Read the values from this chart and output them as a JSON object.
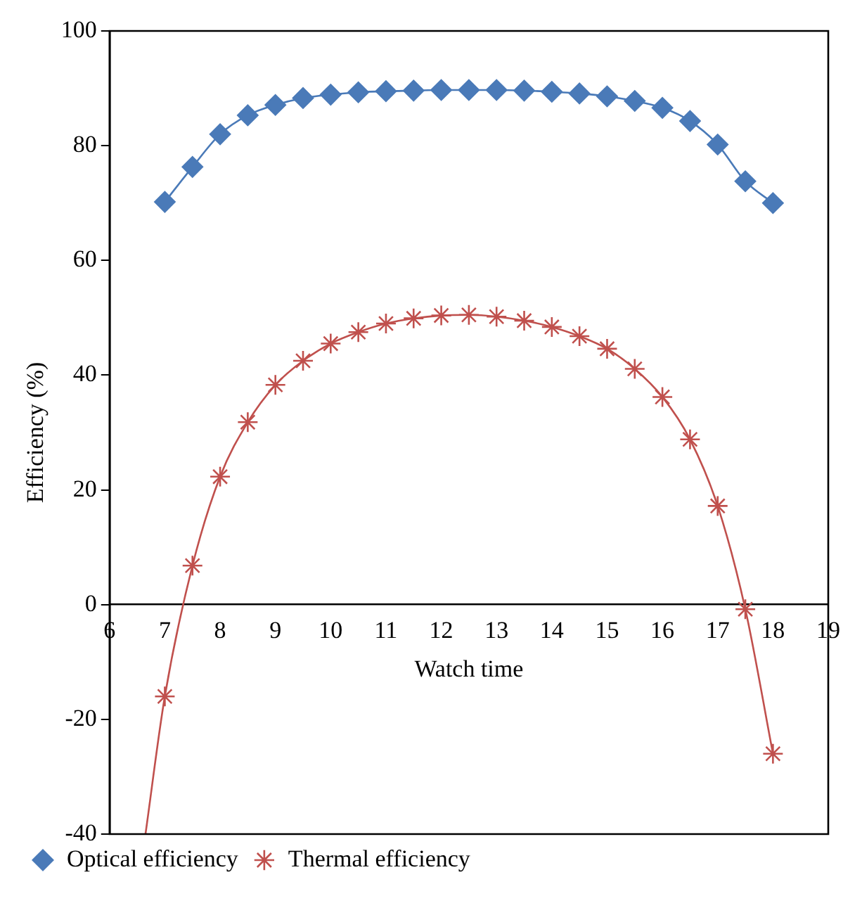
{
  "chart_data": {
    "type": "line",
    "xlabel": "Watch time",
    "ylabel": "Efficiency (%)",
    "xlim": [
      6,
      19
    ],
    "xticks": [
      6,
      7,
      8,
      9,
      10,
      11,
      12,
      13,
      14,
      15,
      16,
      17,
      18,
      19
    ],
    "ylim": [
      -40,
      100
    ],
    "yticks": [
      -40,
      -20,
      0,
      20,
      40,
      60,
      80,
      100
    ],
    "grid": false,
    "legend": "bottom left",
    "series": [
      {
        "name": "Optical efficiency",
        "type": "line",
        "marker": "diamond",
        "color": "#4a7ab8",
        "x": [
          7,
          7.5,
          8,
          8.5,
          9,
          9.5,
          10,
          10.5,
          11,
          11.5,
          12,
          12.5,
          13,
          13.5,
          14,
          14.5,
          15,
          15.5,
          16,
          16.5,
          17,
          17.5,
          18
        ],
        "values": [
          70.2,
          76.3,
          82,
          85.3,
          87.1,
          88.3,
          88.9,
          89.3,
          89.5,
          89.6,
          89.7,
          89.7,
          89.7,
          89.6,
          89.4,
          89.1,
          88.6,
          87.8,
          86.6,
          84.3,
          80.2,
          73.8,
          70
        ]
      },
      {
        "name": "Thermal efficiency",
        "type": "scatter",
        "marker": "cross",
        "color": "#c0504d",
        "x": [
          7,
          7.5,
          8,
          8.5,
          9,
          9.5,
          10,
          10.5,
          11,
          11.5,
          12,
          12.5,
          13,
          13.5,
          14,
          14.5,
          15,
          15.5,
          16,
          16.5,
          17,
          17.5,
          18
        ],
        "values": [
          -16,
          6.8,
          22.3,
          31.8,
          38.3,
          42.5,
          45.5,
          47.5,
          49,
          49.9,
          50.4,
          50.5,
          50.2,
          49.5,
          48.4,
          46.8,
          44.6,
          41.1,
          36.2,
          28.8,
          17.2,
          -0.8,
          -26
        ]
      },
      {
        "marker": "none",
        "color": "#c0504d",
        "x": [
          6.65,
          7,
          7.5,
          8,
          8.5,
          9,
          9.5,
          10,
          10.5,
          11,
          11.5,
          12,
          12.5,
          13,
          13.5,
          14,
          14.5,
          15,
          15.5,
          16,
          16.5,
          17,
          17.5,
          18
        ],
        "values": [
          -40,
          -16,
          6.8,
          22.3,
          31.8,
          38.3,
          42.5,
          45.5,
          47.5,
          49,
          49.9,
          50.4,
          50.5,
          50.2,
          49.5,
          48.4,
          46.8,
          44.6,
          41.1,
          36.2,
          28.8,
          17.2,
          -0.8,
          -26
        ]
      }
    ]
  }
}
